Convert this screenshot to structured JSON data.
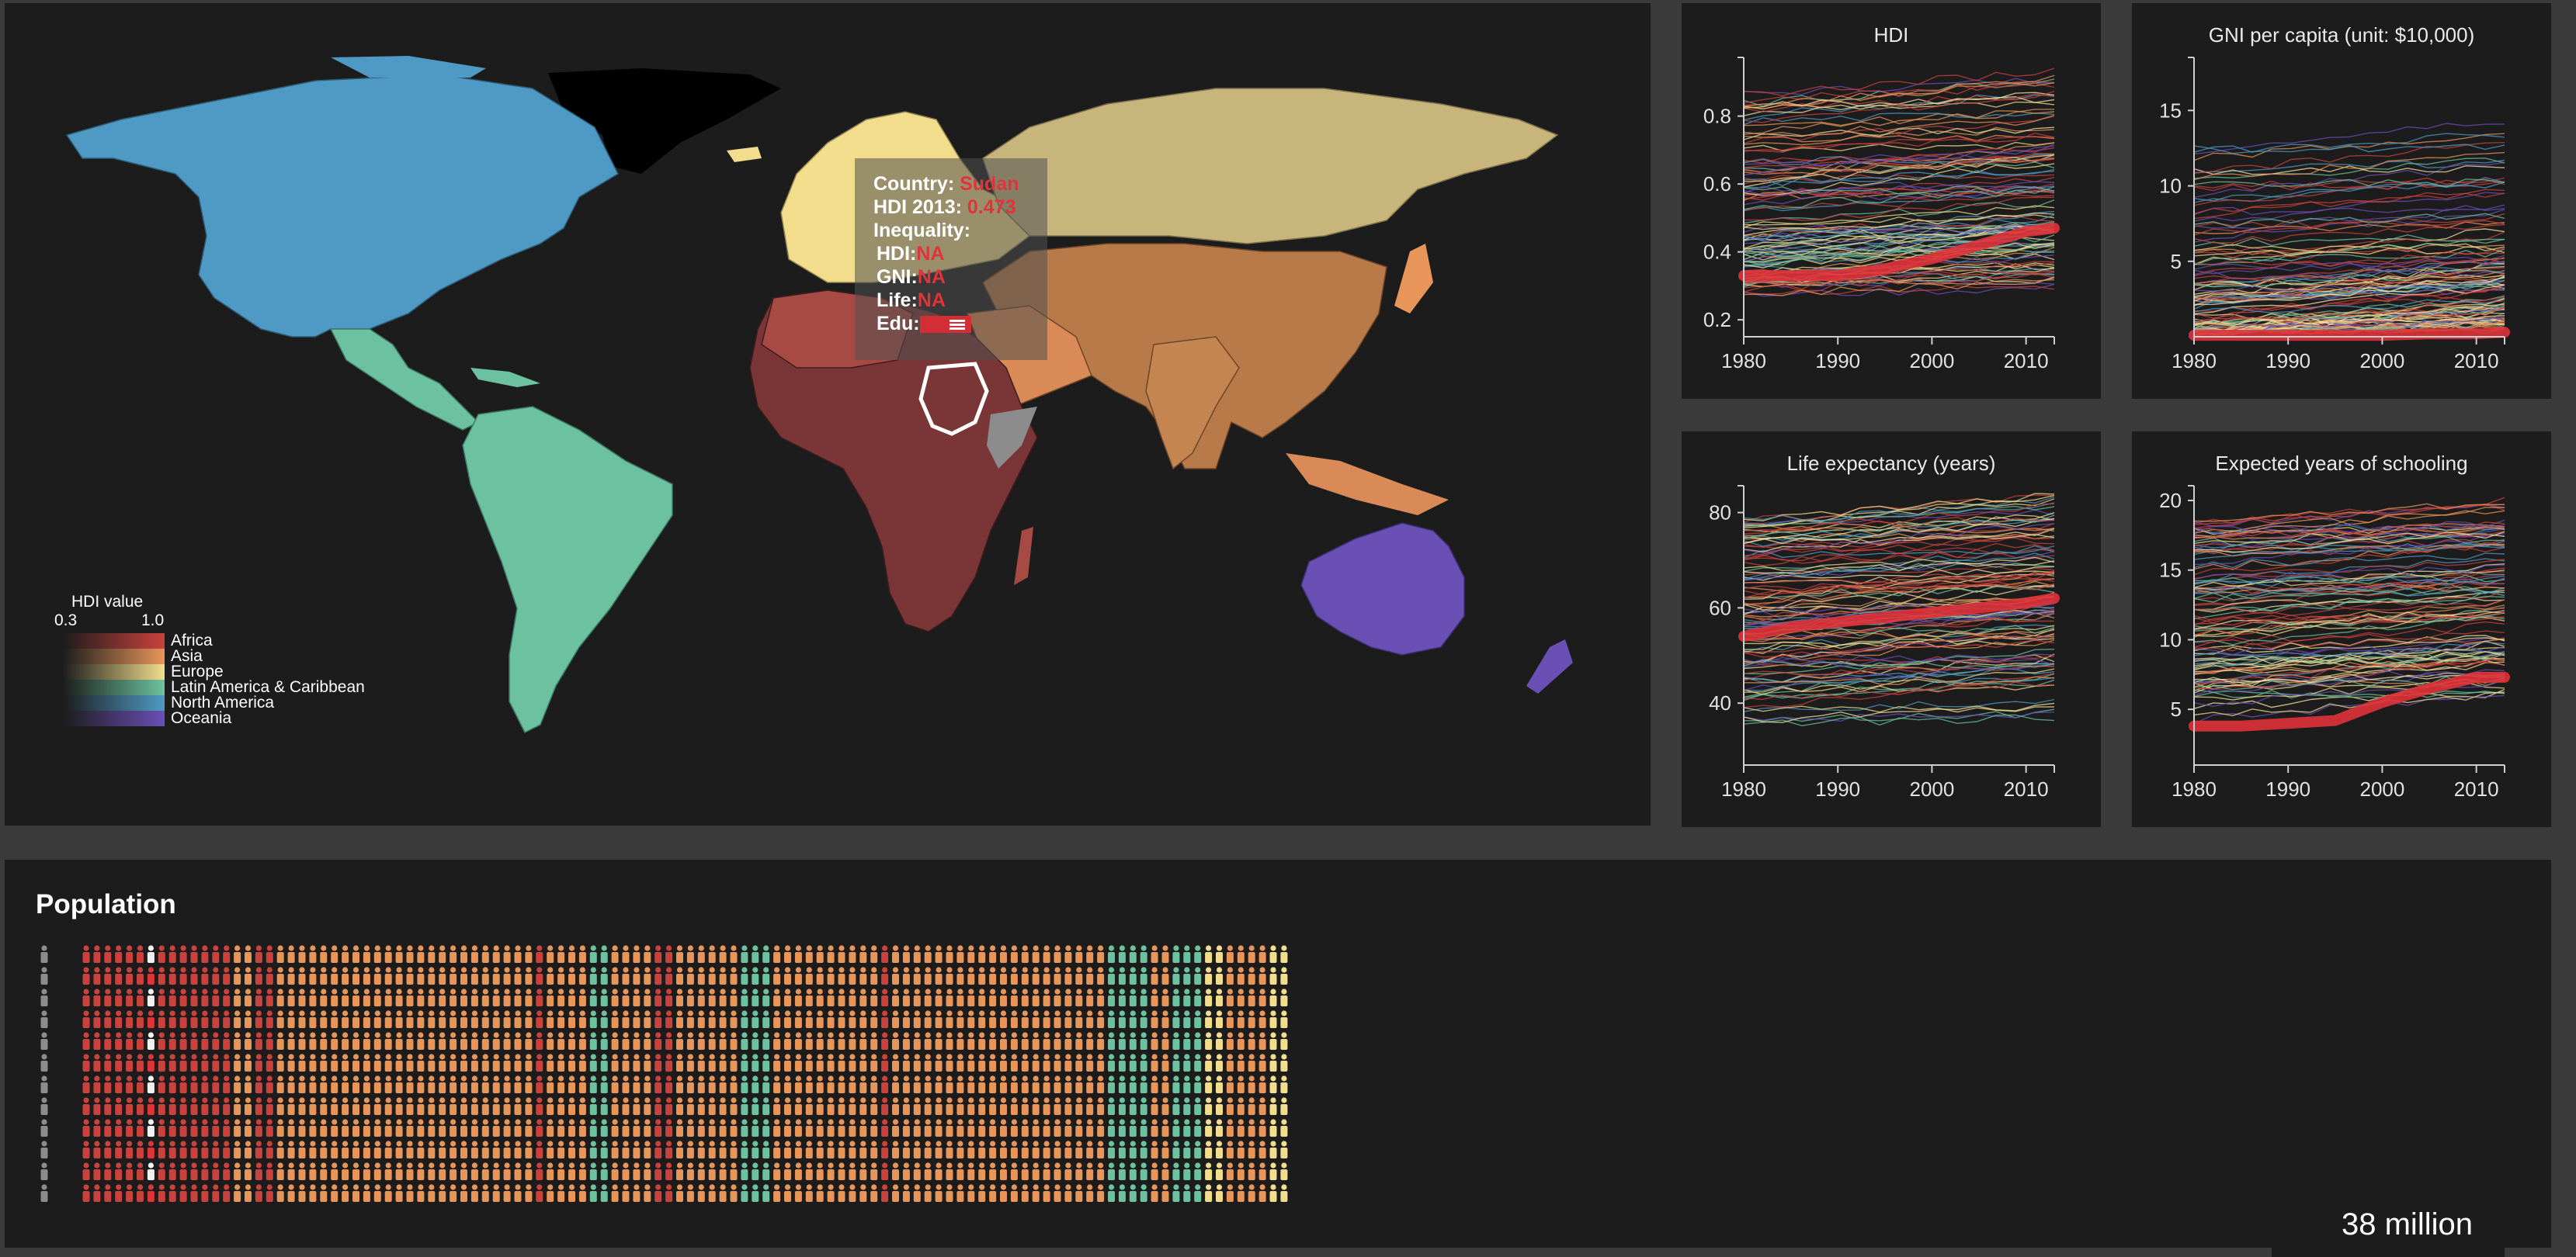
{
  "colors": {
    "africa": "#c9423d",
    "asia": "#e8955a",
    "europe": "#f1dd8c",
    "latin": "#6cc2a0",
    "north_america": "#4f9ac4",
    "oceania": "#6a4fb5",
    "highlight": "#e0333a",
    "grey": "#8c8c8c"
  },
  "map": {
    "tooltip": {
      "country_label": "Country:",
      "country_value": "Sudan",
      "hdi_year_label": "HDI 2013:",
      "hdi_year_value": "0.473",
      "inequality_label": "Inequality:",
      "hdi_label": "HDI:",
      "hdi_value": "NA",
      "gni_label": "GNI:",
      "gni_value": "NA",
      "life_label": "Life:",
      "life_value": "NA",
      "edu_label": "Edu:"
    },
    "legend": {
      "title": "HDI value",
      "min": "0.3",
      "max": "1.0",
      "regions": [
        "Africa",
        "Asia",
        "Europe",
        "Latin America & Caribbean",
        "North America",
        "Oceania"
      ]
    }
  },
  "chart_data": [
    {
      "type": "line",
      "title": "HDI",
      "x": [
        1980,
        1985,
        1990,
        1995,
        2000,
        2005,
        2010,
        2013
      ],
      "xticks": [
        "1980",
        "1990",
        "2000",
        "2010"
      ],
      "yticks": [
        "0.2",
        "0.4",
        "0.6",
        "0.8"
      ],
      "ylim": [
        0.15,
        0.95
      ],
      "highlight": {
        "name": "Sudan",
        "values": [
          0.33,
          0.33,
          0.33,
          0.35,
          0.38,
          0.42,
          0.46,
          0.47
        ]
      }
    },
    {
      "type": "line",
      "title": "GNI per capita (unit: $10,000)",
      "x": [
        1980,
        1985,
        1990,
        1995,
        2000,
        2005,
        2010,
        2013
      ],
      "xticks": [
        "1980",
        "1990",
        "2000",
        "2010"
      ],
      "yticks": [
        "5",
        "10",
        "15"
      ],
      "ylim": [
        0,
        18
      ],
      "highlight": {
        "name": "Sudan",
        "values": [
          0.1,
          0.1,
          0.1,
          0.1,
          0.1,
          0.2,
          0.2,
          0.3
        ]
      }
    },
    {
      "type": "line",
      "title": "Life expectancy (years)",
      "x": [
        1980,
        1985,
        1990,
        1995,
        2000,
        2005,
        2010,
        2013
      ],
      "xticks": [
        "1980",
        "1990",
        "2000",
        "2010"
      ],
      "yticks": [
        "40",
        "60",
        "80"
      ],
      "ylim": [
        27,
        84
      ],
      "highlight": {
        "name": "Sudan",
        "values": [
          54,
          56,
          57,
          58,
          59,
          60,
          61,
          62
        ]
      }
    },
    {
      "type": "line",
      "title": "Expected years of schooling",
      "x": [
        1980,
        1985,
        1990,
        1995,
        2000,
        2005,
        2010,
        2013
      ],
      "xticks": [
        "1980",
        "1990",
        "2000",
        "2010"
      ],
      "yticks": [
        "5",
        "10",
        "15",
        "20"
      ],
      "ylim": [
        1,
        20.5
      ],
      "highlight": {
        "name": "Sudan",
        "values": [
          3.8,
          3.8,
          4.0,
          4.2,
          5.5,
          6.5,
          7.3,
          7.3
        ]
      }
    }
  ],
  "population": {
    "title": "Population",
    "badge": "38 million"
  }
}
